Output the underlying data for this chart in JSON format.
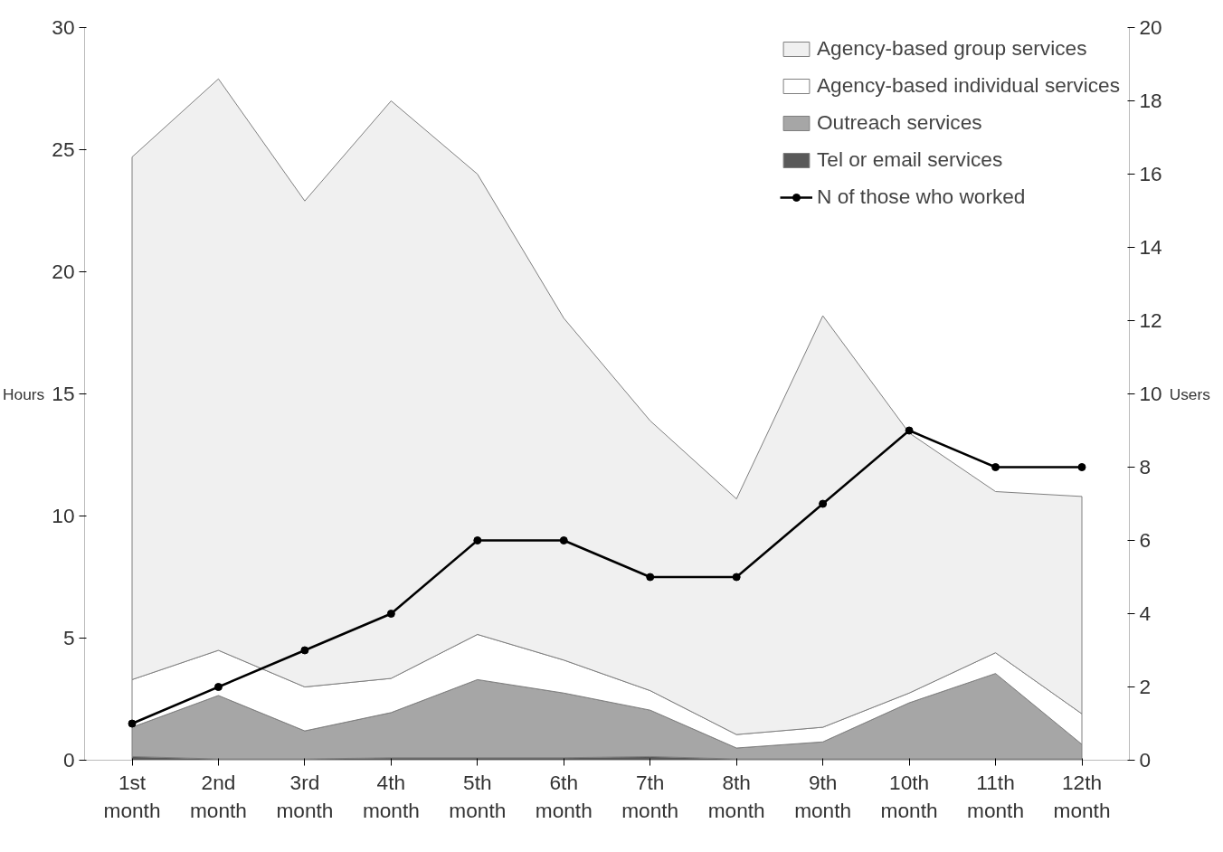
{
  "chart_data": {
    "type": "area",
    "stacked": true,
    "categories": [
      "1st month",
      "2nd month",
      "3rd month",
      "4th month",
      "5th month",
      "6th month",
      "7th month",
      "8th month",
      "9th month",
      "10th month",
      "11th month",
      "12th month"
    ],
    "ylabel": "Hours",
    "y2label": "Users",
    "ylim": [
      0,
      30
    ],
    "yticks": [
      0,
      5,
      10,
      15,
      20,
      25,
      30
    ],
    "y2lim": [
      0,
      20
    ],
    "y2ticks": [
      0,
      2,
      4,
      6,
      8,
      10,
      12,
      14,
      16,
      18,
      20
    ],
    "legend": "top right",
    "grid": false,
    "series": [
      {
        "name": "Tel or email services",
        "color": "#595959",
        "values": [
          0.15,
          0.05,
          0.05,
          0.1,
          0.1,
          0.1,
          0.15,
          0.05,
          0.05,
          0.05,
          0.05,
          0.05
        ]
      },
      {
        "name": "Outreach services",
        "color": "#a6a6a6",
        "values": [
          1.2,
          2.6,
          1.15,
          1.85,
          3.2,
          2.65,
          1.9,
          0.45,
          0.7,
          2.3,
          3.5,
          0.6
        ]
      },
      {
        "name": "Agency-based individual services",
        "color": "#ffffff",
        "values": [
          1.95,
          1.85,
          1.8,
          1.4,
          1.85,
          1.35,
          0.8,
          0.55,
          0.6,
          0.4,
          0.85,
          1.25
        ]
      },
      {
        "name": "Agency-based group services",
        "color": "#f0f0f0",
        "values": [
          21.4,
          23.4,
          19.9,
          23.65,
          18.85,
          14.0,
          11.05,
          9.65,
          16.85,
          10.65,
          6.6,
          8.9
        ]
      },
      {
        "name": "N of those who worked",
        "type": "line",
        "axis": "y2",
        "color": "#000000",
        "marker": "circle",
        "values": [
          1,
          2,
          3,
          4,
          6,
          6,
          5,
          5,
          7,
          9,
          8,
          8
        ]
      }
    ]
  }
}
